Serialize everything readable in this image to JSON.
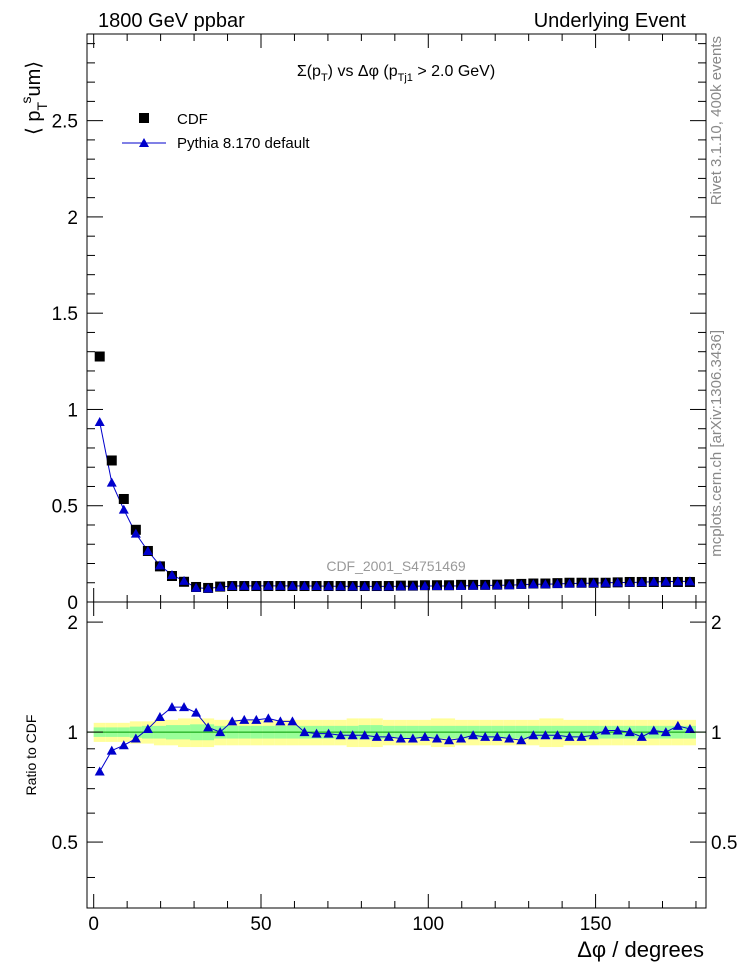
{
  "header": {
    "left": "1800 GeV ppbar",
    "right": "Underlying Event"
  },
  "side": {
    "rivet": "Rivet 3.1.10,  400k events",
    "mcplots": "mcplots.cern.ch [arXiv:1306.3436]"
  },
  "chart_data": [
    {
      "type": "scatter",
      "title": "Σ(pT) vs Δφ (pTj1 > 2.0 GeV)",
      "watermark": "CDF_2001_S4751469",
      "ylabel": "⟨ pTsum⟩",
      "xlim": [
        -2,
        183
      ],
      "ylim": [
        0,
        2.95
      ],
      "yticks": [
        0,
        0.5,
        1,
        1.5,
        2,
        2.5
      ],
      "ytick_labels": [
        "0",
        "0.5",
        "1",
        "1.5",
        "2",
        "2.5"
      ],
      "legend": {
        "placement": "top-left",
        "entries": [
          "CDF",
          "Pythia 8.170 default"
        ]
      },
      "x": [
        1.8,
        5.4,
        9,
        12.6,
        16.2,
        19.8,
        23.4,
        27,
        30.6,
        34.2,
        37.8,
        41.4,
        45,
        48.6,
        52.2,
        55.8,
        59.4,
        63,
        66.6,
        70.2,
        73.8,
        77.4,
        81,
        84.6,
        88.2,
        91.8,
        95.4,
        99,
        102.6,
        106.2,
        109.8,
        113.4,
        117,
        120.6,
        124.2,
        127.8,
        131.4,
        135,
        138.6,
        142.2,
        145.8,
        149.4,
        153,
        156.6,
        160.2,
        163.8,
        167.4,
        171,
        174.6,
        178.2
      ],
      "series": [
        {
          "name": "CDF",
          "marker": "square",
          "color": "#000000",
          "values": [
            1.275,
            0.735,
            0.535,
            0.375,
            0.265,
            0.185,
            0.135,
            0.105,
            0.078,
            0.073,
            0.08,
            0.083,
            0.083,
            0.083,
            0.083,
            0.083,
            0.083,
            0.083,
            0.083,
            0.083,
            0.083,
            0.083,
            0.083,
            0.083,
            0.083,
            0.085,
            0.085,
            0.087,
            0.087,
            0.087,
            0.089,
            0.089,
            0.089,
            0.09,
            0.092,
            0.094,
            0.096,
            0.096,
            0.098,
            0.1,
            0.1,
            0.1,
            0.1,
            0.102,
            0.104,
            0.104,
            0.104,
            0.104,
            0.104,
            0.104
          ]
        },
        {
          "name": "Pythia 8.170 default",
          "marker": "triangle",
          "color": "#0000cc",
          "values": [
            0.935,
            0.62,
            0.48,
            0.355,
            0.265,
            0.19,
            0.14,
            0.11,
            0.074,
            0.07,
            0.078,
            0.083,
            0.084,
            0.084,
            0.084,
            0.084,
            0.084,
            0.083,
            0.083,
            0.082,
            0.082,
            0.081,
            0.081,
            0.081,
            0.081,
            0.082,
            0.082,
            0.083,
            0.083,
            0.083,
            0.084,
            0.085,
            0.086,
            0.087,
            0.087,
            0.09,
            0.092,
            0.092,
            0.094,
            0.096,
            0.097,
            0.098,
            0.1,
            0.101,
            0.101,
            0.103,
            0.105,
            0.106,
            0.107,
            0.107
          ]
        }
      ]
    },
    {
      "type": "scatter",
      "ylabel": "Ratio to CDF",
      "xlabel": "Δφ / degrees",
      "xlim": [
        -2,
        183
      ],
      "ylim": [
        0.33,
        2.27
      ],
      "xticks": [
        0,
        50,
        100,
        150
      ],
      "xtick_labels": [
        "0",
        "50",
        "100",
        "150"
      ],
      "yticks": [
        0.5,
        1,
        2
      ],
      "ytick_labels": [
        "0.5",
        "1",
        "2"
      ],
      "band_colors": {
        "outer": "#ffff99",
        "inner": "#99ff99",
        "line": "#009900"
      },
      "band_inner_halfwidth": [
        0.03,
        0.03,
        0.03,
        0.035,
        0.04,
        0.04,
        0.045,
        0.045,
        0.05,
        0.05,
        0.04,
        0.04,
        0.04,
        0.04,
        0.04,
        0.04,
        0.04,
        0.04,
        0.04,
        0.04,
        0.04,
        0.04,
        0.045,
        0.045,
        0.04,
        0.04,
        0.04,
        0.04,
        0.04,
        0.04,
        0.04,
        0.04,
        0.04,
        0.04,
        0.04,
        0.04,
        0.04,
        0.04,
        0.04,
        0.04,
        0.04,
        0.04,
        0.04,
        0.04,
        0.04,
        0.04,
        0.04,
        0.04,
        0.04,
        0.04
      ],
      "band_outer_halfwidth": [
        0.06,
        0.06,
        0.06,
        0.07,
        0.07,
        0.08,
        0.08,
        0.09,
        0.09,
        0.09,
        0.08,
        0.08,
        0.08,
        0.08,
        0.08,
        0.08,
        0.08,
        0.08,
        0.08,
        0.08,
        0.08,
        0.09,
        0.09,
        0.09,
        0.08,
        0.08,
        0.08,
        0.08,
        0.09,
        0.09,
        0.08,
        0.08,
        0.08,
        0.08,
        0.08,
        0.08,
        0.08,
        0.09,
        0.09,
        0.08,
        0.08,
        0.08,
        0.08,
        0.08,
        0.08,
        0.08,
        0.08,
        0.08,
        0.08,
        0.08
      ],
      "series": [
        {
          "name": "Pythia 8.170 default",
          "marker": "triangle",
          "color": "#0000cc",
          "values": [
            0.78,
            0.89,
            0.92,
            0.96,
            1.02,
            1.1,
            1.17,
            1.17,
            1.13,
            1.03,
            1.0,
            1.07,
            1.08,
            1.08,
            1.09,
            1.07,
            1.07,
            1.0,
            0.99,
            0.99,
            0.98,
            0.98,
            0.98,
            0.97,
            0.97,
            0.96,
            0.96,
            0.97,
            0.96,
            0.95,
            0.96,
            0.98,
            0.97,
            0.97,
            0.96,
            0.95,
            0.98,
            0.98,
            0.98,
            0.97,
            0.97,
            0.98,
            1.01,
            1.01,
            1.0,
            0.97,
            1.01,
            1.0,
            1.04,
            1.02
          ]
        }
      ]
    }
  ]
}
